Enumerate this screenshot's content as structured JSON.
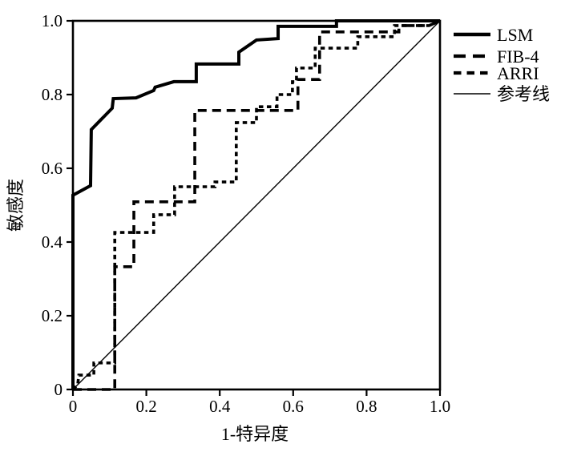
{
  "figure": {
    "background": "#ffffff",
    "ink_color": "#000000"
  },
  "chart_data": {
    "type": "line",
    "subtype": "roc-curve",
    "title": "",
    "xlabel": "1-特异度",
    "ylabel": "敏感度",
    "xlim": [
      0,
      1
    ],
    "ylim": [
      0,
      1
    ],
    "grid": false,
    "legend_position": "top-right-outside",
    "x_tick_labels": [
      "0",
      "0.2",
      "0.4",
      "0.6",
      "0.8",
      "1.0"
    ],
    "x_tick_values": [
      0,
      0.2,
      0.4,
      0.6,
      0.8,
      1.0
    ],
    "y_tick_labels": [
      "0",
      "0.2",
      "0.4",
      "0.6",
      "0.8",
      "1.0"
    ],
    "y_tick_values": [
      0,
      0.2,
      0.4,
      0.6,
      0.8,
      1.0
    ],
    "series": [
      {
        "name": "LSM",
        "line_style": "solid-thick",
        "color": "#000000",
        "line_width": 4,
        "dash": null,
        "legend_dash": null,
        "legend_width": 4.5,
        "points": [
          [
            0,
            0
          ],
          [
            0,
            0.527
          ],
          [
            0.048,
            0.553
          ],
          [
            0.05,
            0.705
          ],
          [
            0.107,
            0.763
          ],
          [
            0.11,
            0.789
          ],
          [
            0.172,
            0.791
          ],
          [
            0.22,
            0.811
          ],
          [
            0.224,
            0.82
          ],
          [
            0.275,
            0.835
          ],
          [
            0.336,
            0.835
          ],
          [
            0.336,
            0.883
          ],
          [
            0.452,
            0.883
          ],
          [
            0.452,
            0.915
          ],
          [
            0.5,
            0.948
          ],
          [
            0.559,
            0.952
          ],
          [
            0.559,
            0.985
          ],
          [
            0.718,
            0.985
          ],
          [
            0.718,
            1
          ],
          [
            1,
            1
          ]
        ]
      },
      {
        "name": "FIB-4",
        "line_style": "dashed-long",
        "color": "#000000",
        "line_width": 3.6,
        "dash": [
          11,
          7
        ],
        "legend_dash": [
          15,
          9
        ],
        "legend_width": 4.2,
        "points": [
          [
            0,
            0
          ],
          [
            0.114,
            0
          ],
          [
            0.114,
            0.333
          ],
          [
            0.166,
            0.333
          ],
          [
            0.166,
            0.509
          ],
          [
            0.332,
            0.509
          ],
          [
            0.332,
            0.757
          ],
          [
            0.613,
            0.757
          ],
          [
            0.613,
            0.841
          ],
          [
            0.672,
            0.841
          ],
          [
            0.672,
            0.97
          ],
          [
            0.888,
            0.97
          ],
          [
            0.888,
            0.987
          ],
          [
            0.97,
            0.987
          ],
          [
            1,
            1
          ]
        ]
      },
      {
        "name": "ARRI",
        "line_style": "dashed-short",
        "color": "#000000",
        "line_width": 3.6,
        "dash": [
          5.5,
          4.5
        ],
        "legend_dash": [
          9.5,
          7
        ],
        "legend_width": 4.2,
        "points": [
          [
            0,
            0
          ],
          [
            0.013,
            0.013
          ],
          [
            0.016,
            0.039
          ],
          [
            0.057,
            0.039
          ],
          [
            0.057,
            0.072
          ],
          [
            0.114,
            0.072
          ],
          [
            0.114,
            0.426
          ],
          [
            0.22,
            0.426
          ],
          [
            0.22,
            0.474
          ],
          [
            0.277,
            0.474
          ],
          [
            0.277,
            0.55
          ],
          [
            0.387,
            0.55
          ],
          [
            0.387,
            0.563
          ],
          [
            0.445,
            0.563
          ],
          [
            0.445,
            0.724
          ],
          [
            0.5,
            0.724
          ],
          [
            0.5,
            0.767
          ],
          [
            0.556,
            0.767
          ],
          [
            0.556,
            0.8
          ],
          [
            0.598,
            0.8
          ],
          [
            0.598,
            0.835
          ],
          [
            0.609,
            0.835
          ],
          [
            0.609,
            0.872
          ],
          [
            0.66,
            0.872
          ],
          [
            0.66,
            0.926
          ],
          [
            0.776,
            0.926
          ],
          [
            0.776,
            0.957
          ],
          [
            0.876,
            0.957
          ],
          [
            0.876,
            0.987
          ],
          [
            0.97,
            0.987
          ],
          [
            1,
            1
          ]
        ]
      },
      {
        "name": "参考线",
        "line_style": "solid-thin",
        "color": "#000000",
        "line_width": 1.4,
        "dash": null,
        "legend_dash": null,
        "legend_width": 1.4,
        "points": [
          [
            0,
            0
          ],
          [
            1,
            1
          ]
        ]
      }
    ]
  }
}
